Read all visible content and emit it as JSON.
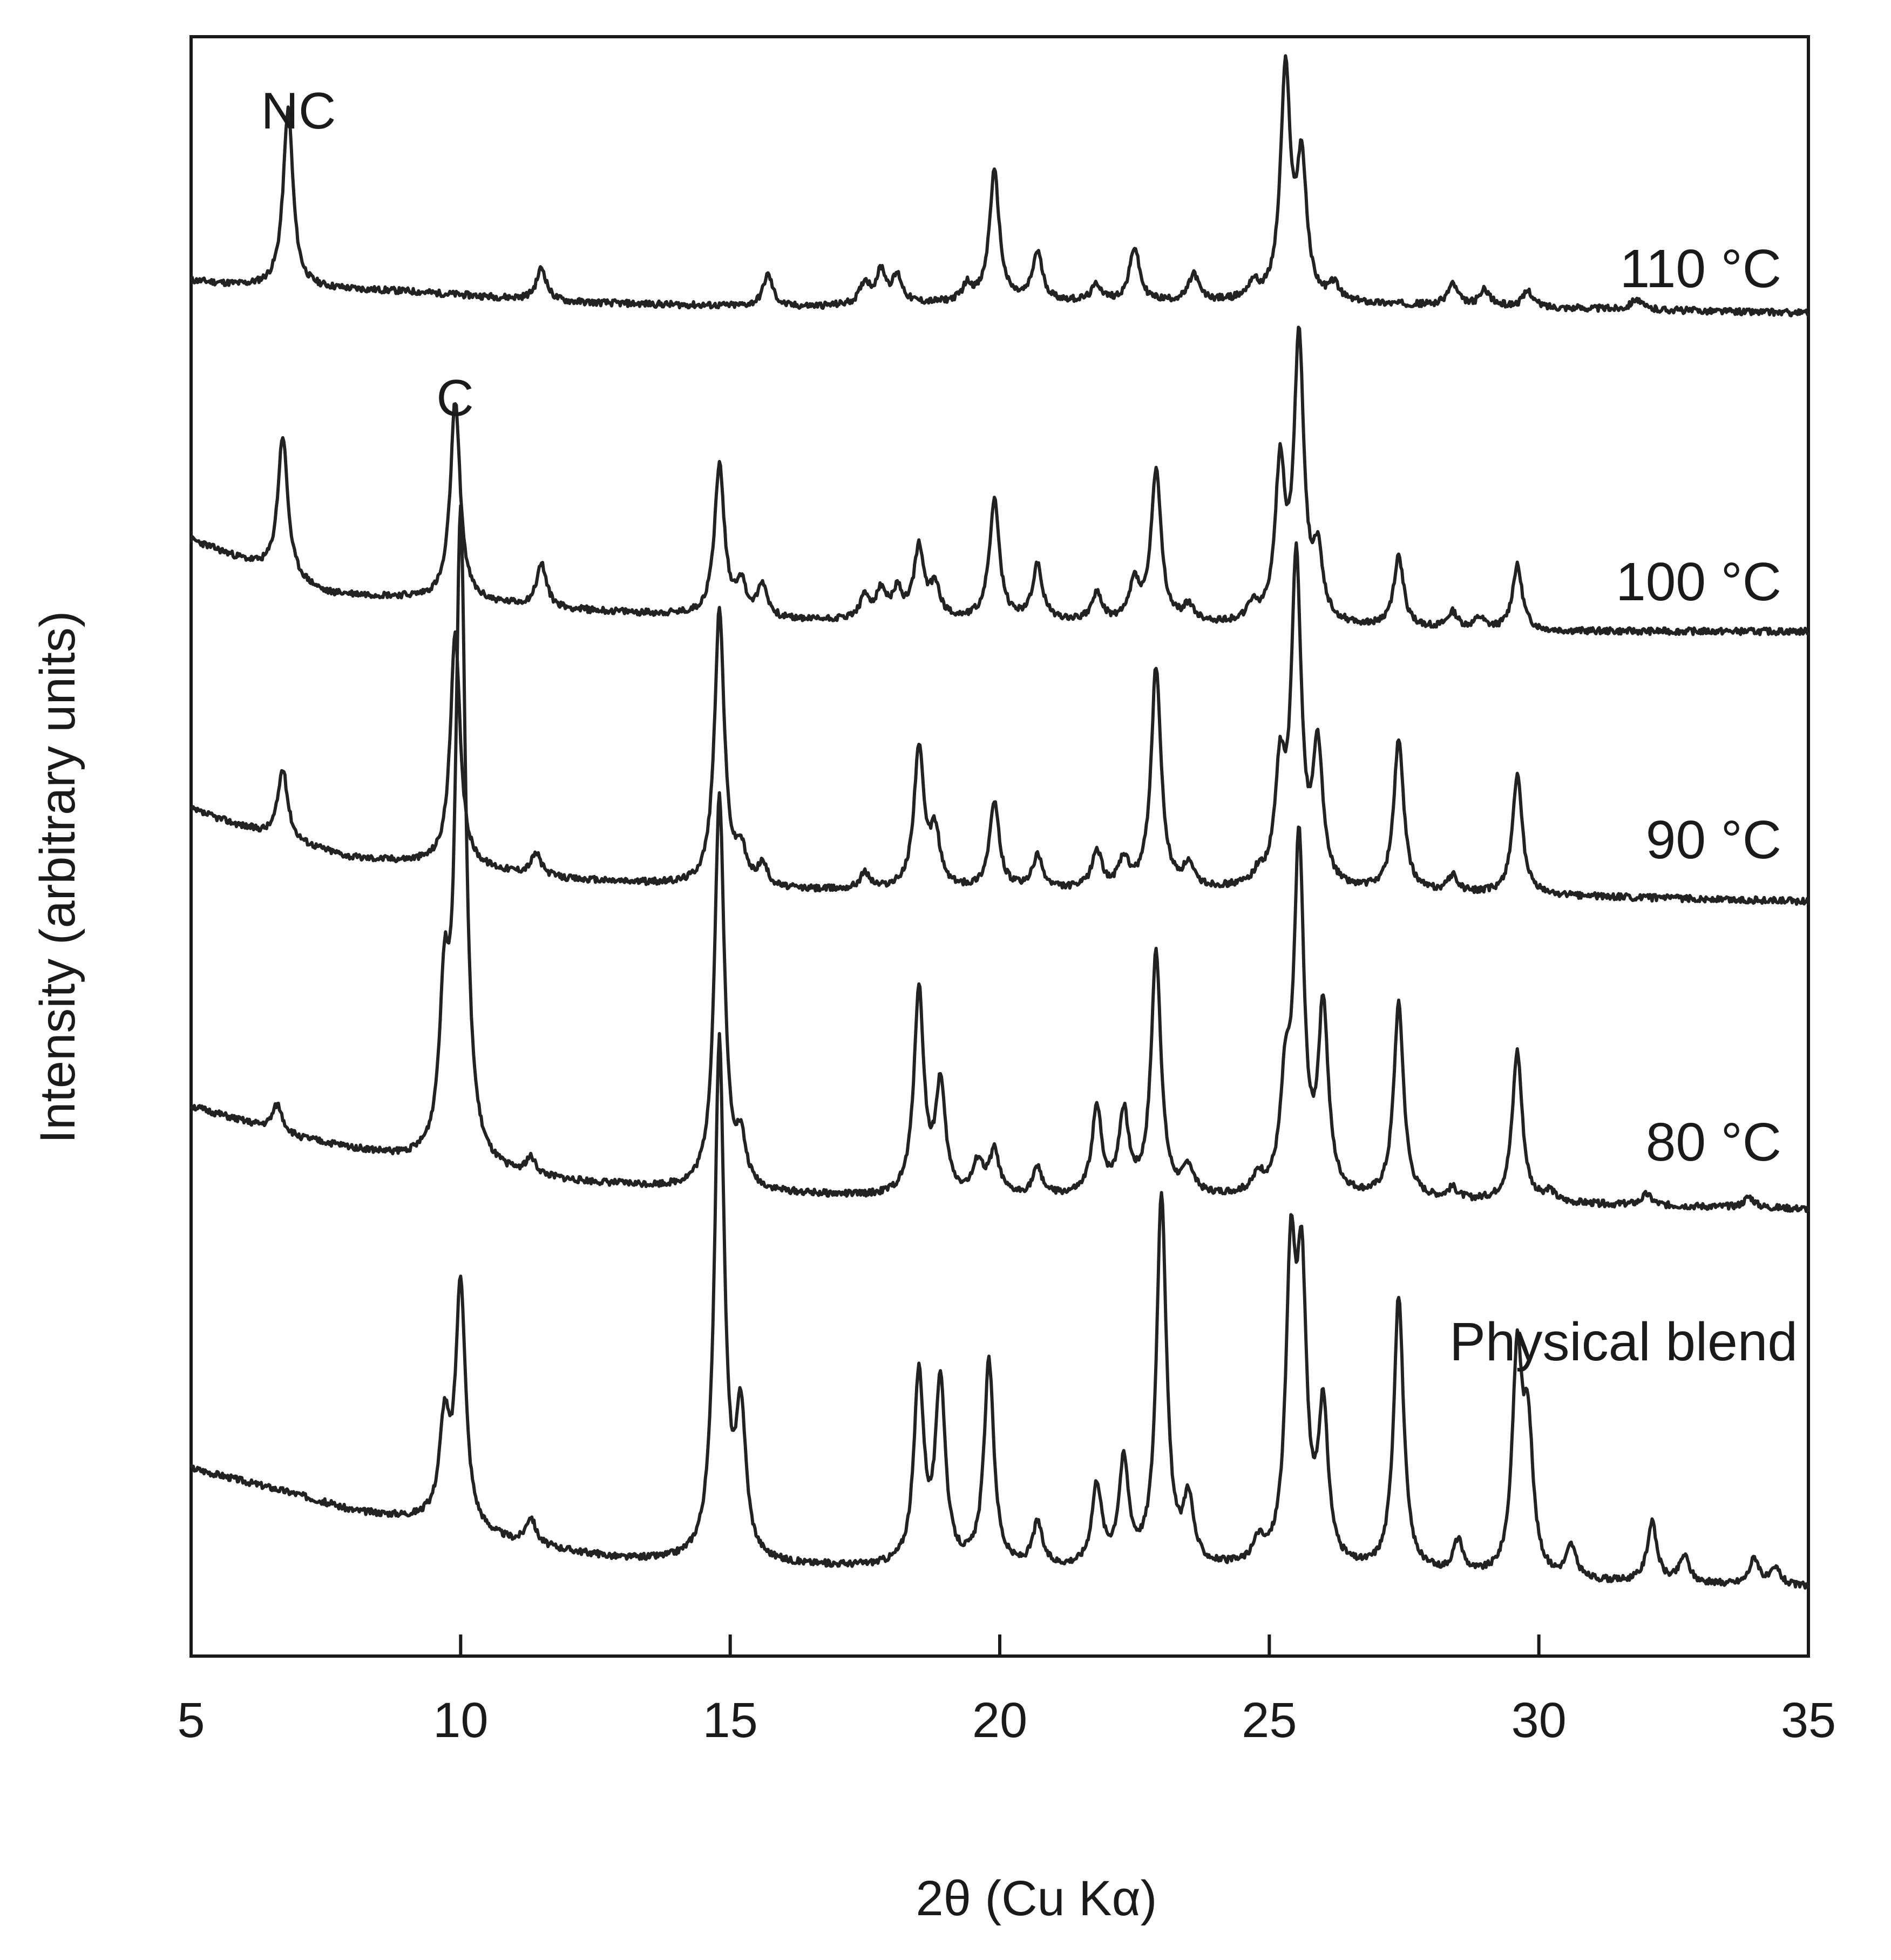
{
  "chart_data": {
    "type": "line",
    "xlabel": "2θ (Cu Kα)",
    "ylabel": "Intensity (arbitrary units)",
    "xlim": [
      5,
      35
    ],
    "xticks": [
      5,
      10,
      15,
      20,
      25,
      30,
      35
    ],
    "y_ticks_shown": false,
    "annotations": [
      {
        "text": "NC",
        "x": 6.8,
        "series": "110 °C"
      },
      {
        "text": "C",
        "x": 9.9,
        "series": "100 °C"
      }
    ],
    "series": [
      {
        "name": "110 °C",
        "label": "110 °C",
        "baseline": [
          [
            5,
            0.04
          ],
          [
            6,
            0.03
          ],
          [
            9,
            0.02
          ],
          [
            12,
            0.0
          ],
          [
            16,
            -0.01
          ],
          [
            20,
            0.0
          ],
          [
            25,
            0.0
          ],
          [
            30,
            -0.01
          ],
          [
            35,
            -0.02
          ]
        ],
        "peaks": [
          [
            6.8,
            0.33
          ],
          [
            11.5,
            0.06
          ],
          [
            15.7,
            0.06
          ],
          [
            17.5,
            0.04
          ],
          [
            17.8,
            0.06
          ],
          [
            18.1,
            0.05
          ],
          [
            19.4,
            0.03
          ],
          [
            19.9,
            0.24
          ],
          [
            20.7,
            0.09
          ],
          [
            21.8,
            0.03
          ],
          [
            22.5,
            0.1
          ],
          [
            23.6,
            0.05
          ],
          [
            24.7,
            0.03
          ],
          [
            25.3,
            0.42
          ],
          [
            25.6,
            0.25
          ],
          [
            26.2,
            0.03
          ],
          [
            28.4,
            0.04
          ],
          [
            29.0,
            0.03
          ],
          [
            29.8,
            0.03
          ],
          [
            31.8,
            0.02
          ]
        ]
      },
      {
        "name": "100 °C",
        "label": "100 °C",
        "baseline": [
          [
            5,
            0.15
          ],
          [
            6.5,
            0.09
          ],
          [
            7.5,
            0.05
          ],
          [
            9.5,
            0.04
          ],
          [
            12,
            0.02
          ],
          [
            16,
            0.0
          ],
          [
            20,
            0.0
          ],
          [
            25,
            -0.01
          ],
          [
            30,
            -0.02
          ],
          [
            35,
            -0.02
          ]
        ],
        "peaks": [
          [
            6.7,
            0.26
          ],
          [
            9.9,
            0.37
          ],
          [
            11.5,
            0.08
          ],
          [
            14.8,
            0.28
          ],
          [
            15.2,
            0.06
          ],
          [
            15.6,
            0.06
          ],
          [
            17.5,
            0.04
          ],
          [
            17.8,
            0.05
          ],
          [
            18.1,
            0.05
          ],
          [
            18.5,
            0.13
          ],
          [
            18.8,
            0.06
          ],
          [
            19.9,
            0.22
          ],
          [
            20.7,
            0.1
          ],
          [
            21.8,
            0.05
          ],
          [
            22.5,
            0.07
          ],
          [
            22.9,
            0.28
          ],
          [
            23.5,
            0.03
          ],
          [
            24.7,
            0.03
          ],
          [
            25.2,
            0.28
          ],
          [
            25.55,
            0.52
          ],
          [
            25.9,
            0.12
          ],
          [
            27.4,
            0.13
          ],
          [
            28.4,
            0.03
          ],
          [
            28.9,
            0.02
          ],
          [
            29.6,
            0.12
          ]
        ]
      },
      {
        "name": "90 °C",
        "label": "90 °C",
        "baseline": [
          [
            5,
            0.15
          ],
          [
            6.5,
            0.1
          ],
          [
            8,
            0.06
          ],
          [
            9.5,
            0.05
          ],
          [
            12,
            0.02
          ],
          [
            16,
            0.0
          ],
          [
            20,
            0.0
          ],
          [
            25,
            0.0
          ],
          [
            30,
            -0.01
          ],
          [
            35,
            -0.02
          ]
        ],
        "peaks": [
          [
            6.7,
            0.13
          ],
          [
            9.9,
            0.43
          ],
          [
            11.4,
            0.04
          ],
          [
            14.8,
            0.51
          ],
          [
            15.2,
            0.06
          ],
          [
            15.6,
            0.04
          ],
          [
            17.5,
            0.03
          ],
          [
            18.5,
            0.26
          ],
          [
            18.8,
            0.1
          ],
          [
            19.9,
            0.16
          ],
          [
            20.7,
            0.06
          ],
          [
            21.8,
            0.07
          ],
          [
            22.3,
            0.05
          ],
          [
            22.9,
            0.41
          ],
          [
            23.5,
            0.04
          ],
          [
            24.8,
            0.02
          ],
          [
            25.2,
            0.2
          ],
          [
            25.5,
            0.6
          ],
          [
            25.9,
            0.25
          ],
          [
            27.4,
            0.28
          ],
          [
            28.4,
            0.03
          ],
          [
            29.6,
            0.22
          ]
        ]
      },
      {
        "name": "80 °C",
        "label": "80 °C",
        "baseline": [
          [
            5,
            0.18
          ],
          [
            7,
            0.12
          ],
          [
            9,
            0.08
          ],
          [
            10,
            0.06
          ],
          [
            12,
            0.04
          ],
          [
            15,
            0.02
          ],
          [
            18,
            0.01
          ],
          [
            22,
            0.01
          ],
          [
            25,
            0.01
          ],
          [
            30,
            0.0
          ],
          [
            35,
            -0.01
          ]
        ],
        "peaks": [
          [
            6.6,
            0.05
          ],
          [
            9.7,
            0.28
          ],
          [
            10.0,
            1.2
          ],
          [
            11.3,
            0.03
          ],
          [
            14.8,
            0.73
          ],
          [
            15.2,
            0.08
          ],
          [
            18.5,
            0.38
          ],
          [
            18.9,
            0.2
          ],
          [
            19.6,
            0.06
          ],
          [
            19.9,
            0.08
          ],
          [
            20.7,
            0.05
          ],
          [
            21.8,
            0.16
          ],
          [
            22.3,
            0.15
          ],
          [
            22.9,
            0.45
          ],
          [
            23.5,
            0.05
          ],
          [
            24.8,
            0.03
          ],
          [
            25.3,
            0.18
          ],
          [
            25.55,
            0.64
          ],
          [
            26.0,
            0.34
          ],
          [
            27.4,
            0.36
          ],
          [
            28.4,
            0.02
          ],
          [
            29.6,
            0.28
          ],
          [
            30.2,
            0.02
          ],
          [
            32.0,
            0.02
          ],
          [
            33.9,
            0.02
          ]
        ]
      },
      {
        "name": "Physical blend",
        "label": "Physical blend",
        "baseline": [
          [
            5,
            0.22
          ],
          [
            7,
            0.17
          ],
          [
            8,
            0.14
          ],
          [
            9.5,
            0.12
          ],
          [
            11,
            0.08
          ],
          [
            13,
            0.05
          ],
          [
            15,
            0.04
          ],
          [
            20,
            0.03
          ],
          [
            25,
            0.03
          ],
          [
            28,
            0.02
          ],
          [
            30,
            0.01
          ],
          [
            35,
            0.0
          ]
        ],
        "peaks": [
          [
            9.7,
            0.18
          ],
          [
            10.0,
            0.45
          ],
          [
            11.3,
            0.05
          ],
          [
            14.8,
            0.96
          ],
          [
            15.2,
            0.26
          ],
          [
            18.5,
            0.35
          ],
          [
            18.9,
            0.34
          ],
          [
            19.8,
            0.38
          ],
          [
            20.7,
            0.08
          ],
          [
            21.8,
            0.15
          ],
          [
            22.3,
            0.19
          ],
          [
            23.0,
            0.69
          ],
          [
            23.5,
            0.12
          ],
          [
            24.8,
            0.04
          ],
          [
            25.4,
            0.53
          ],
          [
            25.6,
            0.49
          ],
          [
            26.0,
            0.28
          ],
          [
            27.4,
            0.51
          ],
          [
            28.5,
            0.06
          ],
          [
            29.6,
            0.4
          ],
          [
            29.8,
            0.25
          ],
          [
            30.6,
            0.06
          ],
          [
            32.1,
            0.11
          ],
          [
            32.7,
            0.05
          ],
          [
            34.0,
            0.05
          ],
          [
            34.4,
            0.03
          ]
        ]
      }
    ]
  }
}
